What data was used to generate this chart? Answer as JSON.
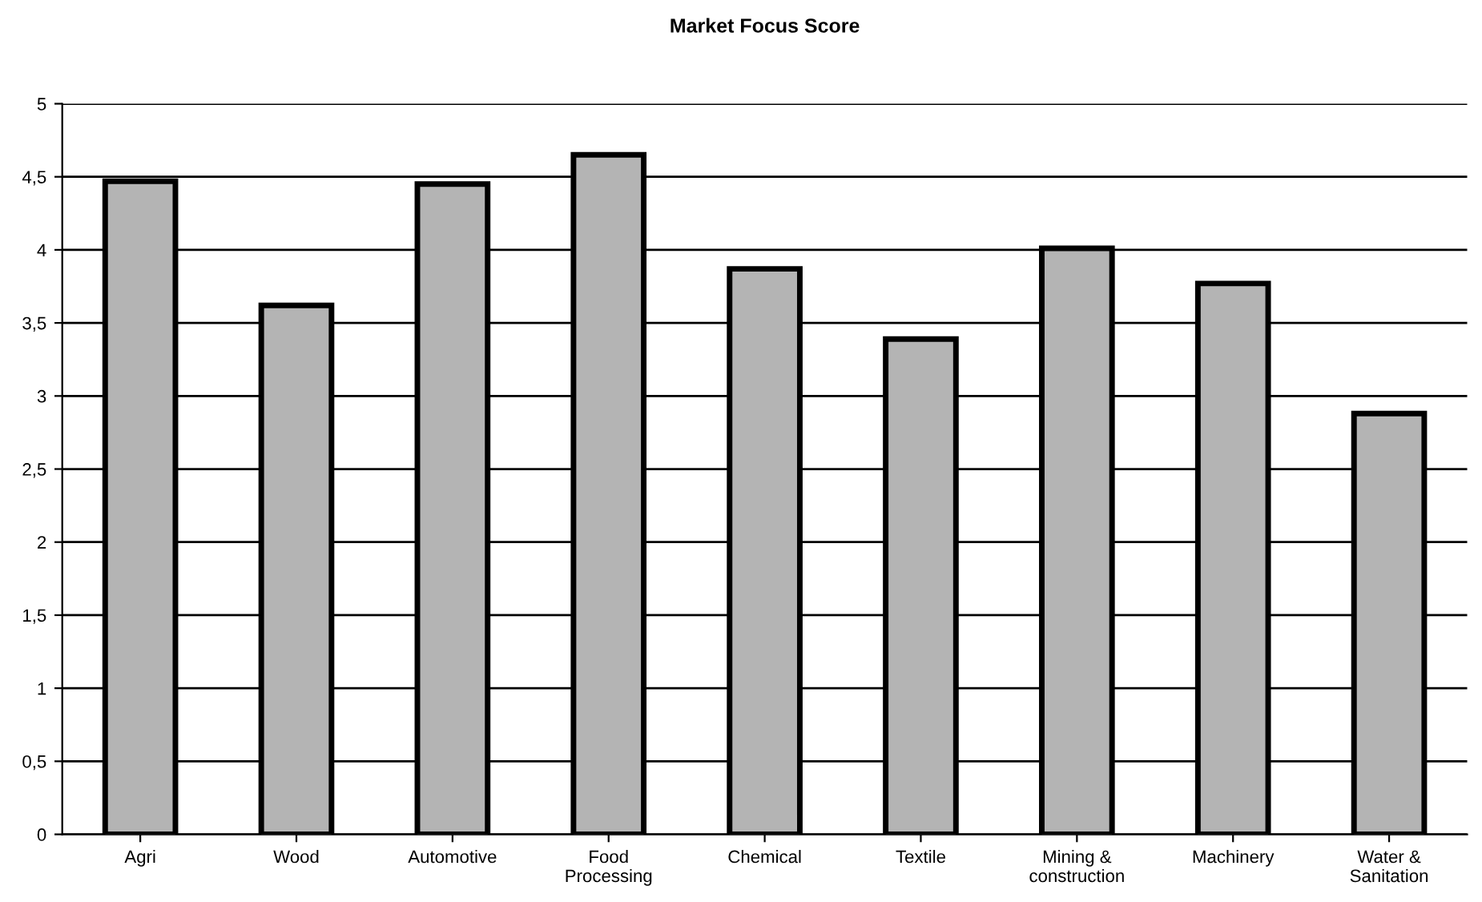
{
  "chart_data": {
    "type": "bar",
    "title": "Market Focus Score",
    "categories": [
      "Agri",
      "Wood",
      "Automotive",
      "Food\nProcessing",
      "Chemical",
      "Textile",
      "Mining &\nconstruction",
      "Machinery",
      "Water &\nSanitation"
    ],
    "values": [
      4.47,
      3.62,
      4.45,
      4.65,
      3.87,
      3.39,
      4.01,
      3.77,
      2.88
    ],
    "color": "#b4b4b4",
    "ylim": [
      0,
      5
    ],
    "yticks": [
      0,
      {
        "value": 0.5,
        "label": "0,5"
      },
      1,
      {
        "value": 1.5,
        "label": "1,5"
      },
      2,
      {
        "value": 2.5,
        "label": "2,5"
      },
      3,
      {
        "value": 3.5,
        "label": "3,5"
      },
      4,
      {
        "value": 4.5,
        "label": "4,5"
      },
      5
    ],
    "grid": "y"
  }
}
